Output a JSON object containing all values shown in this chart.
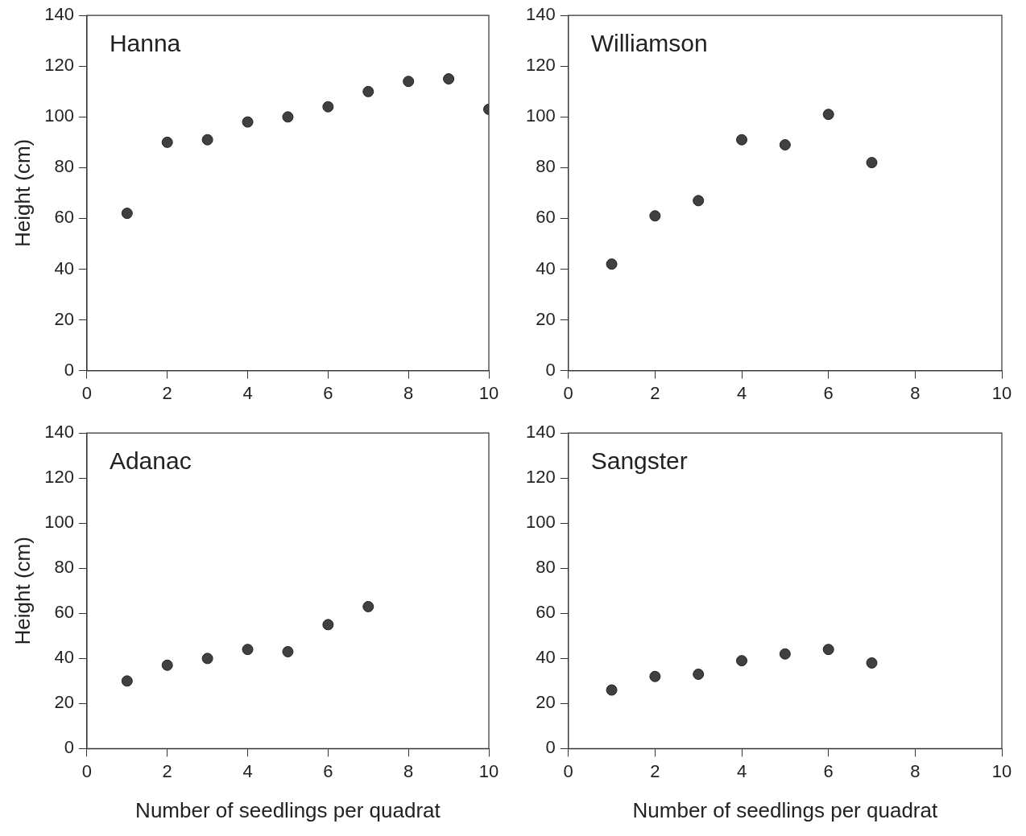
{
  "chart_data": [
    {
      "type": "scatter",
      "annotations": [
        "Hanna"
      ],
      "ylabel": "Height (cm)",
      "x": [
        1,
        2,
        3,
        4,
        5,
        6,
        7,
        8,
        9,
        10
      ],
      "values": [
        62,
        90,
        91,
        98,
        100,
        104,
        110,
        114,
        115,
        103
      ],
      "color": "#404040",
      "marker": "circle",
      "xlim": [
        0,
        10
      ],
      "xticks": [
        0,
        2,
        4,
        6,
        8,
        10
      ],
      "ylim": [
        0,
        140
      ],
      "yticks": [
        0,
        20,
        40,
        60,
        80,
        100,
        120,
        140
      ],
      "grid": false,
      "legend": false
    },
    {
      "type": "scatter",
      "annotations": [
        "Williamson"
      ],
      "x": [
        1,
        2,
        3,
        4,
        5,
        6,
        7
      ],
      "values": [
        42,
        61,
        67,
        91,
        89,
        101,
        82
      ],
      "color": "#404040",
      "marker": "circle",
      "xlim": [
        0,
        10
      ],
      "xticks": [
        0,
        2,
        4,
        6,
        8,
        10
      ],
      "ylim": [
        0,
        140
      ],
      "yticks": [
        0,
        20,
        40,
        60,
        80,
        100,
        120,
        140
      ],
      "grid": false,
      "legend": false
    },
    {
      "type": "scatter",
      "annotations": [
        "Adanac"
      ],
      "ylabel": "Height (cm)",
      "xlabel": "Number of seedlings per quadrat",
      "x": [
        1,
        2,
        3,
        4,
        5,
        6,
        7
      ],
      "values": [
        30,
        37,
        40,
        44,
        43,
        55,
        63
      ],
      "color": "#404040",
      "marker": "circle",
      "xlim": [
        0,
        10
      ],
      "xticks": [
        0,
        2,
        4,
        6,
        8,
        10
      ],
      "ylim": [
        0,
        140
      ],
      "yticks": [
        0,
        20,
        40,
        60,
        80,
        100,
        120,
        140
      ],
      "grid": false,
      "legend": false
    },
    {
      "type": "scatter",
      "annotations": [
        "Sangster"
      ],
      "xlabel": "Number of seedlings per quadrat",
      "x": [
        1,
        2,
        3,
        4,
        5,
        6,
        7
      ],
      "values": [
        26,
        32,
        33,
        39,
        42,
        44,
        38
      ],
      "color": "#404040",
      "marker": "circle",
      "xlim": [
        0,
        10
      ],
      "xticks": [
        0,
        2,
        4,
        6,
        8,
        10
      ],
      "ylim": [
        0,
        140
      ],
      "yticks": [
        0,
        20,
        40,
        60,
        80,
        100,
        120,
        140
      ],
      "grid": false,
      "legend": false
    }
  ]
}
